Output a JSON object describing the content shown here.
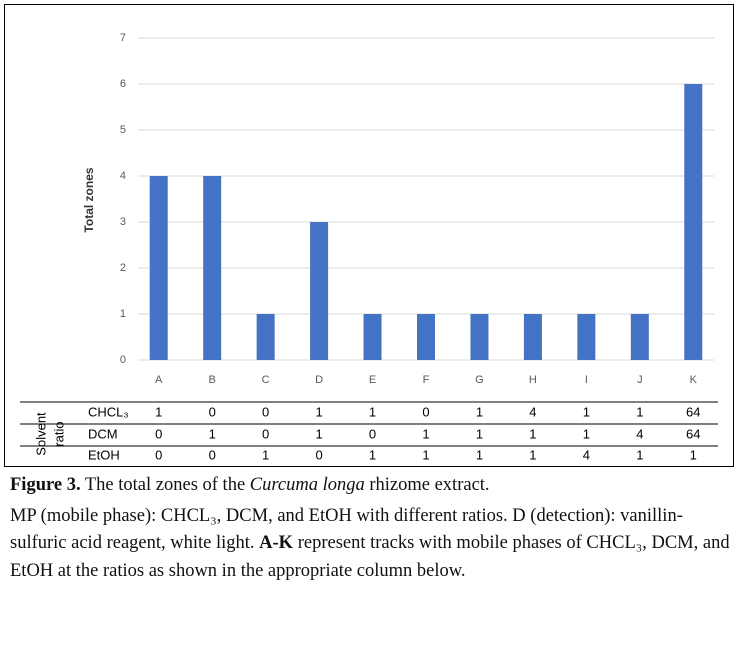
{
  "chart_data": {
    "type": "bar",
    "ylabel": "Total zones",
    "categories": [
      "A",
      "B",
      "C",
      "D",
      "E",
      "F",
      "G",
      "H",
      "I",
      "J",
      "K"
    ],
    "values": [
      4,
      4,
      1,
      3,
      1,
      1,
      1,
      1,
      1,
      1,
      6
    ],
    "color": "#4472c4",
    "ylim": [
      0,
      7
    ],
    "yticks": [
      0,
      1,
      2,
      3,
      4,
      5,
      6,
      7
    ],
    "grid": true
  },
  "table": {
    "row_header": [
      "Solvent",
      "ratio"
    ],
    "rows": [
      {
        "name": "CHCL₃",
        "values": [
          "1",
          "0",
          "0",
          "1",
          "1",
          "0",
          "1",
          "4",
          "1",
          "1",
          "64"
        ]
      },
      {
        "name": "DCM",
        "values": [
          "0",
          "1",
          "0",
          "1",
          "0",
          "1",
          "1",
          "1",
          "1",
          "4",
          "64"
        ]
      },
      {
        "name": "EtOH",
        "values": [
          "0",
          "0",
          "1",
          "0",
          "1",
          "1",
          "1",
          "1",
          "4",
          "1",
          "1"
        ]
      }
    ]
  },
  "caption": {
    "label": "Figure 3.",
    "before": "The total zones of the",
    "species": "Curcuma longa",
    "after": "rhizome extract.",
    "mp": "MP (mobile phase): CHCL₃, DCM, and EtOH with different ratios.",
    "detection": "D (detection): vanillin-sulfuric acid reagent, white light.",
    "tracks_label": "A-K",
    "tracks_text": "represent tracks with mobile phases of CHCL₃, DCM, and EtOH at the ratios as shown in the appropriate column below."
  }
}
